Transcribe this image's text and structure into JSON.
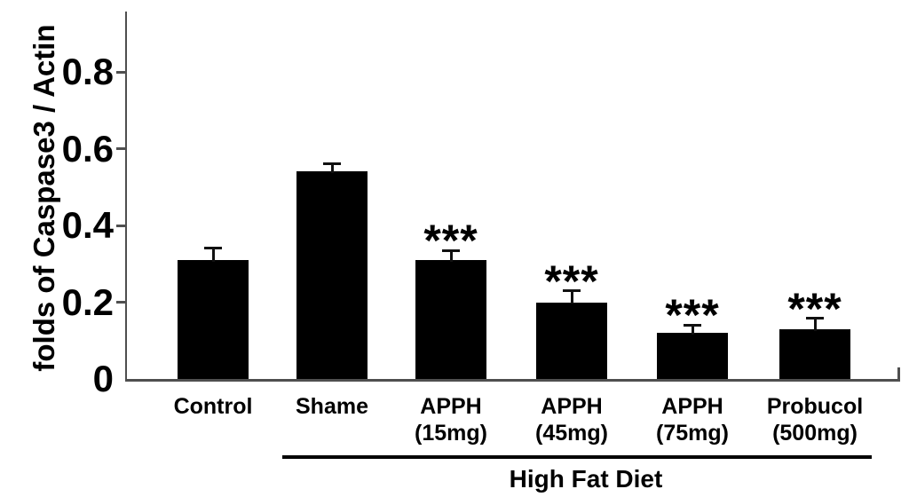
{
  "chart_data": {
    "type": "bar",
    "title": "",
    "ylabel": "folds of Caspase3 / Actin",
    "xlabel": "",
    "ylim": [
      0,
      0.95
    ],
    "grid": false,
    "legend": false,
    "yticks": {
      "values": [
        0,
        0.2,
        0.4,
        0.6,
        0.8
      ],
      "labels": [
        "0",
        "0.2",
        "0.4",
        "0.6",
        "0.8"
      ]
    },
    "categories": [
      "Control",
      "Shame",
      "APPH (15mg)",
      "APPH (45mg)",
      "APPH (75mg)",
      "Probucol (500mg)"
    ],
    "category_lines": [
      [
        "Control"
      ],
      [
        "Shame"
      ],
      [
        "APPH",
        "(15mg)"
      ],
      [
        "APPH",
        "(45mg)"
      ],
      [
        "APPH",
        "(75mg)"
      ],
      [
        "Probucol",
        "(500mg)"
      ]
    ],
    "series": [
      {
        "name": "folds of Caspase3 / Actin",
        "values": [
          0.31,
          0.54,
          0.31,
          0.2,
          0.12,
          0.13
        ],
        "errors": [
          0.03,
          0.02,
          0.025,
          0.03,
          0.02,
          0.028
        ]
      }
    ],
    "significance": [
      "",
      "",
      "***",
      "***",
      "***",
      "***"
    ],
    "group_annotation": {
      "label": "High Fat Diet",
      "start_category": "Shame",
      "end_category": "Probucol (500mg)"
    },
    "colors": {
      "bar": "#000000",
      "axis": "#4f4f4f",
      "text": "#000000",
      "error_bar": "#111111"
    }
  }
}
